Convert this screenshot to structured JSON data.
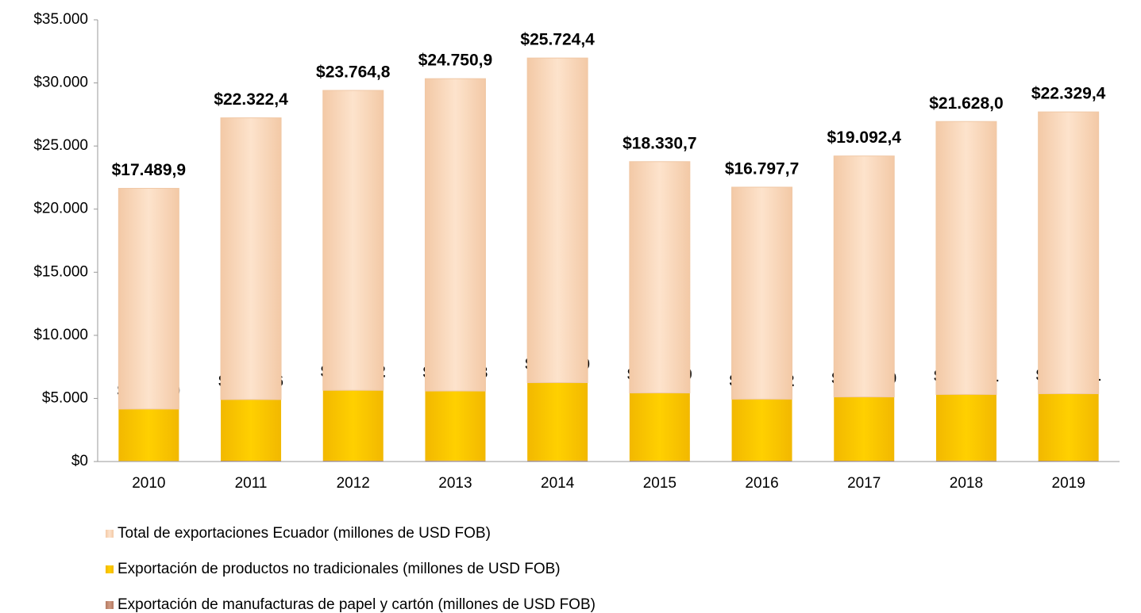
{
  "chart_data": {
    "type": "stacked_bar",
    "categories": [
      "2010",
      "2011",
      "2012",
      "2013",
      "2014",
      "2015",
      "2016",
      "2017",
      "2018",
      "2019"
    ],
    "series": [
      {
        "name": "Total de exportaciones Ecuador (millones de USD FOB)",
        "color": "#fbdcc0",
        "values": [
          17489.9,
          22322.4,
          23764.8,
          24750.9,
          25724.4,
          18330.7,
          16797.7,
          19092.4,
          21628.0,
          22329.4
        ],
        "value_labels": [
          "$17.489,9",
          "$22.322,4",
          "$23.764,8",
          "$24.750,9",
          "$25.724,4",
          "$18.330,7",
          "$16.797,7",
          "$19.092,4",
          "$21.628,0",
          "$22.329,4"
        ]
      },
      {
        "name": "Exportación de productos no tradicionales (millones de USD FOB)",
        "color": "#ffc800",
        "values": [
          4111.0,
          4848.6,
          5576.2,
          5513.3,
          6173.0,
          5365.9,
          4881.2,
          5056.9,
          5241.1,
          5312.1
        ],
        "value_labels": [
          "$4.111,0",
          "$4.848,6",
          "$5.576,2",
          "$5.513,3",
          "$6.173,0",
          "$5.365,9",
          "$4.881,2",
          "$5.056,9",
          "$5.241,1",
          "$5.312,1"
        ]
      },
      {
        "name": "Exportación de manufacturas de papel y cartón (millones de USD FOB)",
        "color": "#c48a72",
        "values": [
          47.1,
          62.4,
          67.0,
          73.8,
          76.5,
          68.6,
          61.9,
          62.0,
          74.1,
          61.6
        ],
        "value_labels": [
          "$47,1",
          "$62,4",
          "$67,0",
          "$73,8",
          "$76,5",
          "$68,6",
          "$61,9",
          "$62,0",
          "$74,1",
          "$61,6"
        ]
      }
    ],
    "ylim": [
      0,
      35000
    ],
    "yticks": [
      {
        "value": 0,
        "label": "$0"
      },
      {
        "value": 5000,
        "label": "$5.000"
      },
      {
        "value": 10000,
        "label": "$10.000"
      },
      {
        "value": 15000,
        "label": "$15.000"
      },
      {
        "value": 20000,
        "label": "$20.000"
      },
      {
        "value": 25000,
        "label": "$25.000"
      },
      {
        "value": 30000,
        "label": "$30.000"
      },
      {
        "value": 35000,
        "label": "$35.000"
      }
    ],
    "legend": "bottom-left"
  }
}
